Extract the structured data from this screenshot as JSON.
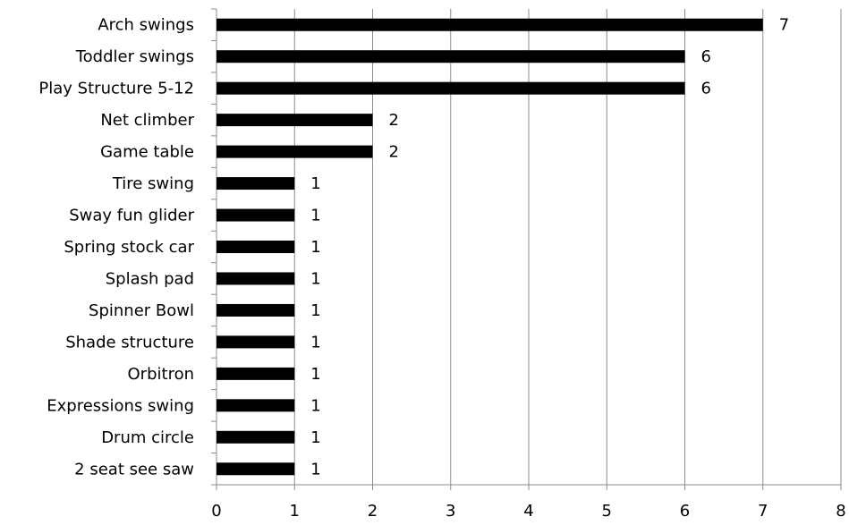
{
  "chart_data": {
    "type": "bar",
    "orientation": "horizontal",
    "title": "",
    "xlabel": "",
    "ylabel": "",
    "xlim": [
      0,
      8
    ],
    "x_ticks": [
      "0",
      "1",
      "2",
      "3",
      "4",
      "5",
      "6",
      "7",
      "8"
    ],
    "grid": "vertical",
    "bar_color": "#000000",
    "categories": [
      "Arch swings",
      "Toddler swings",
      "Play Structure 5-12",
      "Net climber",
      "Game table",
      "Tire swing",
      "Sway fun glider",
      "Spring stock car",
      "Splash pad",
      "Spinner Bowl",
      "Shade structure",
      "Orbitron",
      "Expressions swing",
      "Drum circle",
      "2 seat see saw"
    ],
    "values": [
      7,
      6,
      6,
      2,
      2,
      1,
      1,
      1,
      1,
      1,
      1,
      1,
      1,
      1,
      1
    ],
    "value_labels": [
      "7",
      "6",
      "6",
      "2",
      "2",
      "1",
      "1",
      "1",
      "1",
      "1",
      "1",
      "1",
      "1",
      "1",
      "1"
    ]
  }
}
